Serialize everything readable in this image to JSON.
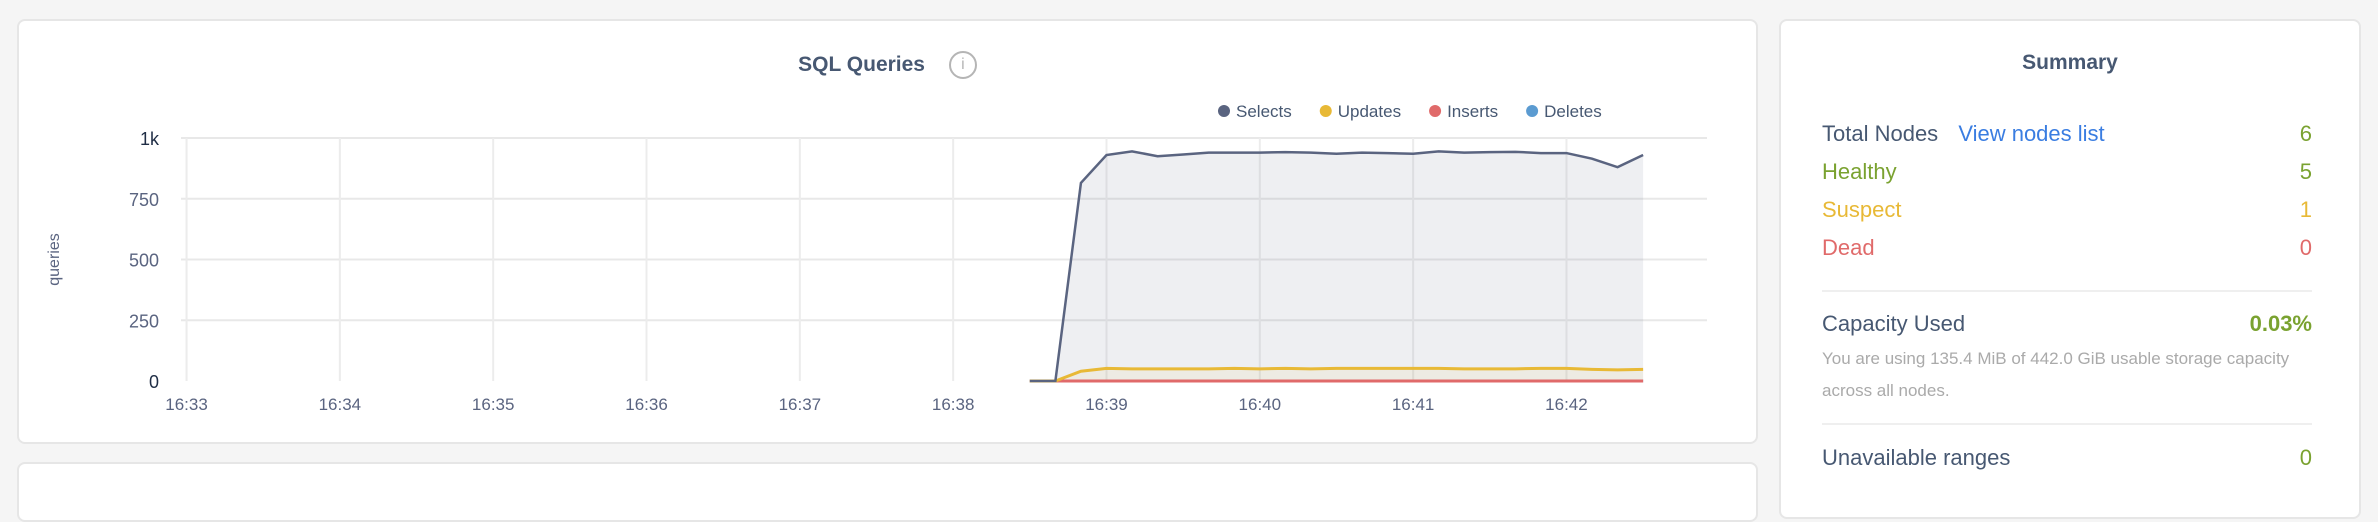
{
  "chart_card": {
    "title": "SQL Queries",
    "info_icon": "info-icon"
  },
  "chart_data": {
    "type": "area",
    "title": "SQL Queries",
    "ylabel": "queries",
    "xlabel": "",
    "ylim": [
      0,
      1000
    ],
    "y_ticks": [
      "0",
      "250",
      "500",
      "750",
      "1k"
    ],
    "y_tick_values": [
      0,
      250,
      500,
      750,
      1000
    ],
    "x_ticks": [
      "16:33",
      "16:34",
      "16:35",
      "16:36",
      "16:37",
      "16:38",
      "16:39",
      "16:40",
      "16:41",
      "16:42"
    ],
    "xlim": [
      "16:32:50",
      "16:42:55"
    ],
    "grid": true,
    "legend": "top-right",
    "x": [
      "16:38:30",
      "16:38:40",
      "16:38:50",
      "16:39:00",
      "16:39:10",
      "16:39:20",
      "16:39:30",
      "16:39:40",
      "16:39:50",
      "16:40:00",
      "16:40:10",
      "16:40:20",
      "16:40:30",
      "16:40:40",
      "16:40:50",
      "16:41:00",
      "16:41:10",
      "16:41:20",
      "16:41:30",
      "16:41:40",
      "16:41:50",
      "16:42:00",
      "16:42:10",
      "16:42:20",
      "16:42:30"
    ],
    "series": [
      {
        "name": "Selects",
        "color": "#5a6480",
        "values": [
          0,
          0,
          815,
          930,
          945,
          925,
          932,
          940,
          940,
          940,
          942,
          940,
          935,
          940,
          938,
          935,
          945,
          940,
          942,
          943,
          938,
          938,
          915,
          880,
          930
        ]
      },
      {
        "name": "Updates",
        "color": "#e8b936",
        "values": [
          0,
          0,
          40,
          52,
          50,
          50,
          50,
          50,
          52,
          50,
          52,
          50,
          52,
          52,
          52,
          52,
          52,
          50,
          50,
          50,
          52,
          52,
          48,
          46,
          48
        ]
      },
      {
        "name": "Inserts",
        "color": "#e06a6a",
        "values": [
          0,
          0,
          0,
          0,
          0,
          0,
          0,
          0,
          0,
          0,
          0,
          0,
          0,
          0,
          0,
          0,
          0,
          0,
          0,
          0,
          0,
          0,
          0,
          0,
          0
        ]
      },
      {
        "name": "Deletes",
        "color": "#5b9bd1",
        "values": [
          0,
          0,
          0,
          0,
          0,
          0,
          0,
          0,
          0,
          0,
          0,
          0,
          0,
          0,
          0,
          0,
          0,
          0,
          0,
          0,
          0,
          0,
          0,
          0,
          0
        ]
      }
    ]
  },
  "summary": {
    "title": "Summary",
    "total_nodes_label": "Total Nodes",
    "view_nodes_link": "View nodes list",
    "total_nodes_value": "6",
    "healthy_label": "Healthy",
    "healthy_value": "5",
    "suspect_label": "Suspect",
    "suspect_value": "1",
    "dead_label": "Dead",
    "dead_value": "0",
    "capacity_label": "Capacity Used",
    "capacity_value": "0.03%",
    "capacity_note": "You are using 135.4 MiB of 442.0 GiB usable storage capacity across all nodes.",
    "unavailable_label": "Unavailable ranges",
    "unavailable_value": "0",
    "colors": {
      "text": "#475872",
      "green": "#7aa230",
      "yellow": "#e8b936",
      "red": "#e06a6a",
      "link": "#3a7de1"
    }
  }
}
